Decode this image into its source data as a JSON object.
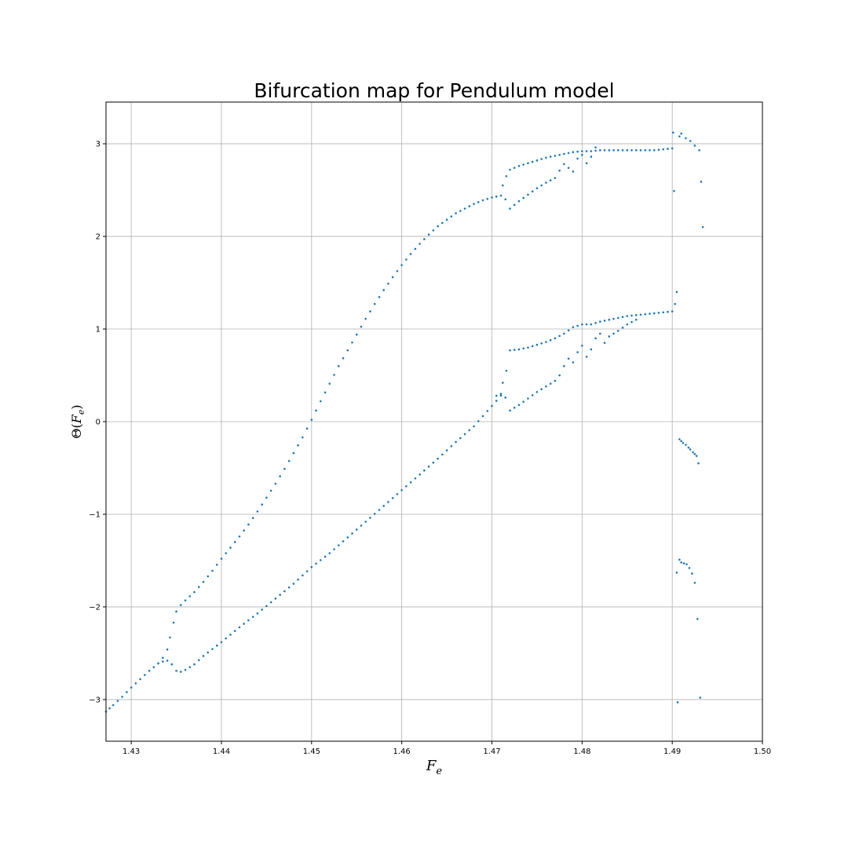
{
  "chart_data": {
    "type": "scatter",
    "title": "Bifurcation map for Pendulum model",
    "xlabel_base": "F",
    "xlabel_sub": "e",
    "ylabel_pre": "Θ(",
    "ylabel_base": "F",
    "ylabel_sub": "e",
    "ylabel_post": ")",
    "xlim": [
      1.4272,
      1.5
    ],
    "ylim": [
      -3.45,
      3.45
    ],
    "xticks": [
      1.43,
      1.44,
      1.45,
      1.46,
      1.47,
      1.48,
      1.49,
      1.5
    ],
    "xtick_labels": [
      "1.43",
      "1.44",
      "1.45",
      "1.46",
      "1.47",
      "1.48",
      "1.49",
      "1.50"
    ],
    "yticks": [
      -3,
      -2,
      -1,
      0,
      1,
      2,
      3
    ],
    "ytick_labels": [
      "−3",
      "−2",
      "−1",
      "0",
      "1",
      "2",
      "3"
    ],
    "grid": true,
    "marker_color": "#1f77b4",
    "series": [
      {
        "x": [
          1.4272,
          1.428,
          1.429,
          1.43,
          1.431,
          1.432,
          1.433,
          1.4335,
          1.434,
          1.4343,
          1.4347,
          1.435,
          1.4355,
          1.436,
          1.437,
          1.438,
          1.439,
          1.44,
          1.441,
          1.442,
          1.443,
          1.444,
          1.445,
          1.446,
          1.447,
          1.448,
          1.449,
          1.45,
          1.451,
          1.452,
          1.453,
          1.454,
          1.455,
          1.456,
          1.457,
          1.458,
          1.459,
          1.46,
          1.461,
          1.462,
          1.463,
          1.464,
          1.465,
          1.466,
          1.467,
          1.468,
          1.469,
          1.47,
          1.471
        ],
        "values": [
          -3.13,
          -3.06,
          -2.97,
          -2.87,
          -2.78,
          -2.69,
          -2.61,
          -2.55,
          -2.46,
          -2.33,
          -2.17,
          -2.05,
          -1.98,
          -1.93,
          -1.84,
          -1.73,
          -1.61,
          -1.48,
          -1.36,
          -1.24,
          -1.11,
          -0.97,
          -0.82,
          -0.67,
          -0.51,
          -0.34,
          -0.17,
          0.02,
          0.22,
          0.41,
          0.6,
          0.77,
          0.94,
          1.11,
          1.27,
          1.42,
          1.56,
          1.69,
          1.81,
          1.92,
          2.02,
          2.11,
          2.18,
          2.25,
          2.3,
          2.35,
          2.39,
          2.42,
          2.44
        ]
      },
      {
        "x": [
          1.433,
          1.4335,
          1.434,
          1.4345,
          1.435,
          1.4355,
          1.436,
          1.437,
          1.438,
          1.44,
          1.442,
          1.444,
          1.446,
          1.448,
          1.45,
          1.452,
          1.454,
          1.456,
          1.458,
          1.46,
          1.462,
          1.464,
          1.466,
          1.468,
          1.47,
          1.471
        ],
        "values": [
          -2.61,
          -2.59,
          -2.58,
          -2.62,
          -2.69,
          -2.7,
          -2.68,
          -2.62,
          -2.53,
          -2.38,
          -2.22,
          -2.07,
          -1.91,
          -1.75,
          -1.57,
          -1.42,
          -1.25,
          -1.08,
          -0.91,
          -0.74,
          -0.57,
          -0.4,
          -0.22,
          -0.05,
          0.17,
          0.28
        ]
      },
      {
        "x": [
          1.4712,
          1.4716,
          1.472,
          1.473,
          1.474,
          1.475,
          1.476,
          1.477,
          1.478,
          1.479,
          1.48,
          1.481,
          1.482,
          1.483,
          1.484,
          1.485,
          1.486,
          1.487,
          1.488,
          1.489,
          1.49
        ],
        "values": [
          2.55,
          2.65,
          2.72,
          2.76,
          2.79,
          2.82,
          2.85,
          2.87,
          2.89,
          2.91,
          2.92,
          2.92,
          2.93,
          2.93,
          2.93,
          2.93,
          2.93,
          2.93,
          2.93,
          2.94,
          2.95
        ]
      },
      {
        "x": [
          1.4715,
          1.472,
          1.473,
          1.474,
          1.475,
          1.476,
          1.477,
          1.4775,
          1.478,
          1.4785,
          1.479,
          1.4795,
          1.48,
          1.4805,
          1.481,
          1.4815
        ],
        "values": [
          2.4,
          2.3,
          2.38,
          2.45,
          2.52,
          2.58,
          2.63,
          2.71,
          2.78,
          2.74,
          2.7,
          2.84,
          2.88,
          2.79,
          2.86,
          2.96
        ]
      },
      {
        "x": [
          1.4712,
          1.4716,
          1.472,
          1.473,
          1.474,
          1.475,
          1.476,
          1.477,
          1.478,
          1.479,
          1.48,
          1.481,
          1.482,
          1.483,
          1.484,
          1.485,
          1.486,
          1.487,
          1.488,
          1.489,
          1.49
        ],
        "values": [
          0.42,
          0.55,
          0.77,
          0.78,
          0.8,
          0.83,
          0.86,
          0.9,
          0.95,
          1.02,
          1.05,
          1.05,
          1.08,
          1.1,
          1.12,
          1.14,
          1.15,
          1.16,
          1.17,
          1.18,
          1.19
        ]
      },
      {
        "x": [
          1.4705,
          1.471,
          1.4715,
          1.472,
          1.473,
          1.474,
          1.475,
          1.476,
          1.477,
          1.4775,
          1.478,
          1.4785,
          1.479,
          1.4795,
          1.48,
          1.4805,
          1.481,
          1.4815,
          1.482,
          1.4825,
          1.483,
          1.484,
          1.485,
          1.486
        ],
        "values": [
          0.28,
          0.3,
          0.26,
          0.12,
          0.18,
          0.25,
          0.32,
          0.38,
          0.44,
          0.5,
          0.6,
          0.68,
          0.64,
          0.75,
          0.82,
          0.7,
          0.78,
          0.9,
          0.95,
          0.85,
          0.92,
          0.98,
          1.05,
          1.1
        ]
      },
      {
        "x": [
          1.4901,
          1.4902,
          1.4903,
          1.4905,
          1.4908,
          1.491,
          1.4915,
          1.492,
          1.4925,
          1.493,
          1.4932,
          1.4934
        ],
        "values": [
          3.12,
          2.49,
          1.27,
          1.4,
          3.08,
          3.11,
          3.06,
          3.03,
          2.98,
          2.93,
          2.59,
          2.1
        ]
      },
      {
        "x": [
          1.4908,
          1.491,
          1.4912,
          1.4915,
          1.4918,
          1.492,
          1.4923,
          1.4925,
          1.4927,
          1.4929
        ],
        "values": [
          -0.19,
          -0.21,
          -0.23,
          -0.25,
          -0.28,
          -0.3,
          -0.33,
          -0.35,
          -0.37,
          -0.45
        ]
      },
      {
        "x": [
          1.4905,
          1.4908,
          1.491,
          1.4913,
          1.4916,
          1.4919,
          1.4922,
          1.4925,
          1.4928,
          1.4931
        ],
        "values": [
          -1.63,
          -1.49,
          -1.52,
          -1.53,
          -1.54,
          -1.58,
          -1.64,
          -1.74,
          -2.13,
          -2.98
        ]
      },
      {
        "x": [
          1.4906
        ],
        "values": [
          -3.03
        ]
      }
    ]
  }
}
